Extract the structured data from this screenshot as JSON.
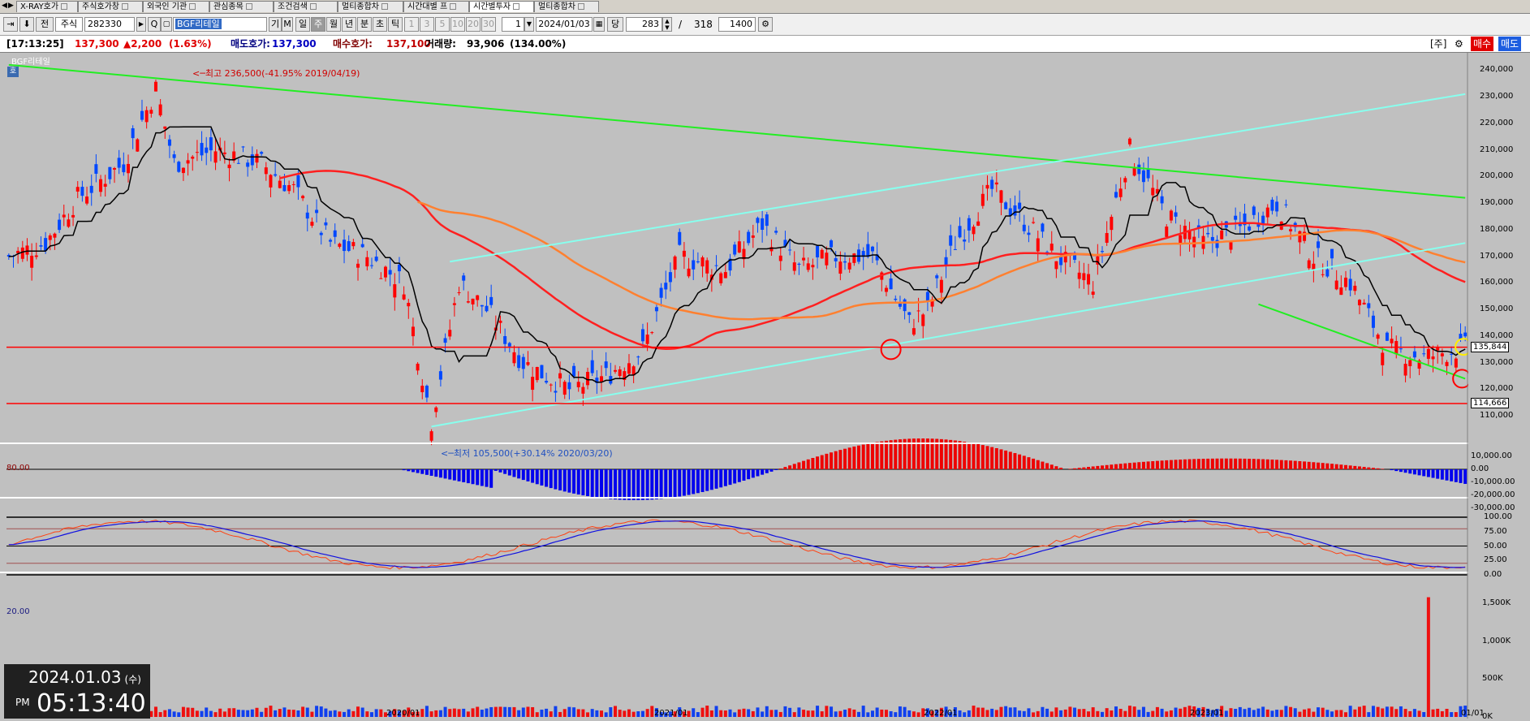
{
  "tabs": [
    {
      "label": "X-RAY호가",
      "active": false
    },
    {
      "label": "주식호가창",
      "active": false
    },
    {
      "label": "외국인 기관",
      "active": false
    },
    {
      "label": "관심종목",
      "active": false
    },
    {
      "label": "조건검색",
      "active": false
    },
    {
      "label": "멀티종합차",
      "active": false
    },
    {
      "label": "시간대별 프",
      "active": false
    },
    {
      "label": "시간별투자",
      "active": true
    },
    {
      "label": "멀티종합차",
      "active": false
    }
  ],
  "toolbar": {
    "jeon": "전",
    "market": "주식",
    "code": "282330",
    "search_glyph": "Q",
    "stock_name": "BGF리테일",
    "gi": "기",
    "m": "M",
    "periods": [
      "일",
      "주",
      "월",
      "년",
      "분",
      "초",
      "틱"
    ],
    "selected_period": "주",
    "intervals": [
      "1",
      "3",
      "5",
      "10",
      "20",
      "30"
    ],
    "interval_value": "1",
    "date": "2024/01/03",
    "dang": "당",
    "count_value": "283",
    "slash": "/",
    "total": "318",
    "zoom": "1400"
  },
  "info": {
    "time": "[17:13:25]",
    "price": "137,300",
    "change": "▲2,200",
    "change_pct": "(1.63%)",
    "ask_label": "매도호가:",
    "ask": "137,300",
    "bid_label": "매수호가:",
    "bid": "137,100",
    "volume_label": "거래량:",
    "volume": "93,906",
    "volume_pct": "(134.00%)",
    "ju": "[주]",
    "buy": "매수",
    "sell": "매도"
  },
  "chart_data": {
    "type": "candlestick",
    "title": "BGF리테일",
    "legend_badge": "호",
    "annotations": {
      "high": "최고 236,500(-41.95% 2019/04/19)",
      "low": "최저 105,500(+30.14% 2020/03/20)"
    },
    "price_axis": {
      "min": 100000,
      "max": 245000,
      "ticks": [
        "240,000",
        "230,000",
        "220,000",
        "210,000",
        "200,000",
        "190,000",
        "180,000",
        "170,000",
        "160,000",
        "150,000",
        "140,000",
        "130,000",
        "120,000",
        "110,000"
      ]
    },
    "price_markers": [
      "135,844",
      "114,666"
    ],
    "x_labels": [
      "2020/01",
      "2021/01",
      "2022/01",
      "2023/01",
      "01/01"
    ],
    "macd_axis": {
      "ticks": [
        "10,000.00",
        "0.00",
        "-10,000.00",
        "-20,000.00",
        "-30,000.00"
      ]
    },
    "stoch_axis": {
      "ticks": [
        "100.00",
        "75.00",
        "50.00",
        "25.00",
        "0.00"
      ],
      "upper_label": "80.00",
      "lower_label": "20.00"
    },
    "volume_axis": {
      "ticks": [
        "1,500K",
        "1,000K",
        "500K",
        "0K"
      ]
    },
    "colors": {
      "up": "#ff0000",
      "down": "#0047ff",
      "background": "#c0c0c0"
    }
  },
  "clock": {
    "date": "2024.01.03",
    "weekday": "(수)",
    "ampm": "PM",
    "time": "05:13:40"
  }
}
